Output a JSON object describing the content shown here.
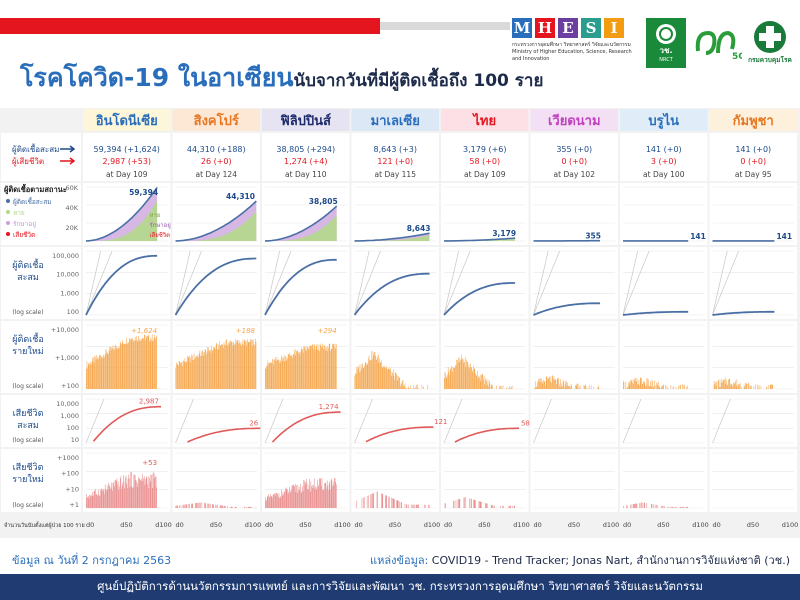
{
  "title": {
    "main": "โรคโควิด-19 ในอาเซียน",
    "sub": "นับจากวันที่มีผู้ติดเชื้อถึง 100 ราย"
  },
  "logos": {
    "mhesi_letters": [
      "M",
      "H",
      "E",
      "S",
      "I"
    ],
    "mhesi_colors": [
      "#2a6ebb",
      "#e4151f",
      "#6b3fa0",
      "#2a9d8f",
      "#f39c12"
    ],
    "mhesi_line1": "กระทรวงการอุดมศึกษา วิทยาศาสตร์ วิจัยและนวัตกรรม",
    "mhesi_line2": "Ministry of Higher Education, Science, Research and Innovation",
    "nrct_label": "วช.",
    "nrct_sub": "NRCT",
    "ssg_label": "5G",
    "moph_label": "กรมควบคุมโรค"
  },
  "legend": {
    "cum_cases": "ผู้ติดเชื้อสะสม",
    "cum_deaths": "ผู้เสียชีวิต",
    "status_title": "ผู้ติดเชื้อตามสถานะ",
    "status_items": [
      "ผู้ติดเชื้อสะสม",
      "หาย",
      "รักษาอยู่",
      "เสียชีวิต"
    ],
    "status_colors": [
      "#4a6fa5",
      "#b5d98a",
      "#c9a0dc",
      "#e4151f"
    ]
  },
  "rows": {
    "r2_label": [
      "ผู้ติดเชื้อ",
      "สะสม"
    ],
    "r3_label": [
      "ผู้ติดเชื้อ",
      "รายใหม่"
    ],
    "r4_label": [
      "เสียชีวิต",
      "สะสม"
    ],
    "r5_label": [
      "เสียชีวิต",
      "รายใหม่"
    ],
    "log_scale": "(log scale)",
    "r1_ticks": [
      "60K",
      "40K",
      "20K"
    ],
    "r2_ticks": [
      "100,000",
      "10,000",
      "1,000",
      "100"
    ],
    "r3_ticks": [
      "+10,000",
      "+1,000",
      "+100"
    ],
    "r4_ticks": [
      "10,000",
      "1,000",
      "100",
      "10"
    ],
    "r5_ticks": [
      "+1000",
      "+100",
      "+10",
      "+1"
    ],
    "days_label": "จำนวนวันนับตั้งแต่ผู้ป่วย 100 ราย",
    "x_ticks": [
      "d0",
      "d50",
      "d100"
    ],
    "inset_labels": {
      "recovered": "หาย",
      "active": "รักษาอยู่",
      "dead": "เสียชีวิต"
    }
  },
  "countries": [
    {
      "name": "อินโดนีเซีย",
      "color": "#2a6ebb",
      "cases": "59,394 (+1,624)",
      "deaths": "2,987 (+53)",
      "day": "at Day 109",
      "total": "59,394",
      "new_label": "+1,624",
      "death_label": "2,987",
      "new_death_label": "+53"
    },
    {
      "name": "สิงคโปร์",
      "color": "#e87722",
      "cases": "44,310 (+188)",
      "deaths": "26 (+0)",
      "day": "at Day 124",
      "total": "44,310",
      "new_label": "+188",
      "death_label": "26",
      "new_death_label": ""
    },
    {
      "name": "ฟิลิปปินส์",
      "color": "#1d2a6b",
      "cases": "38,805 (+294)",
      "deaths": "1,274 (+4)",
      "day": "at Day 110",
      "total": "38,805",
      "new_label": "+294",
      "death_label": "1,274",
      "new_death_label": ""
    },
    {
      "name": "มาเลเซีย",
      "color": "#2a6ebb",
      "cases": "8,643 (+3)",
      "deaths": "121 (+0)",
      "day": "at Day 115",
      "total": "8,643",
      "new_label": "",
      "death_label": "121",
      "new_death_label": ""
    },
    {
      "name": "ไทย",
      "color": "#e4151f",
      "cases": "3,179 (+6)",
      "deaths": "58 (+0)",
      "day": "at Day 109",
      "total": "3,179",
      "new_label": "",
      "death_label": "58",
      "new_death_label": ""
    },
    {
      "name": "เวียดนาม",
      "color": "#c040c0",
      "cases": "355 (+0)",
      "deaths": "0 (+0)",
      "day": "at Day 102",
      "total": "355",
      "new_label": "",
      "death_label": "",
      "new_death_label": ""
    },
    {
      "name": "บรูไน",
      "color": "#2a6ebb",
      "cases": "141 (+0)",
      "deaths": "3 (+0)",
      "day": "at Day 100",
      "total": "141",
      "new_label": "",
      "death_label": "",
      "new_death_label": ""
    },
    {
      "name": "กัมพูชา",
      "color": "#e87722",
      "cases": "141 (+0)",
      "deaths": "0 (+0)",
      "day": "at Day 95",
      "total": "141",
      "new_label": "",
      "death_label": "",
      "new_death_label": ""
    }
  ],
  "footer": {
    "date": "ข้อมูล ณ วันที่ 2 กรกฎาคม 2563",
    "source_prefix": "แหล่งข้อมูล:",
    "source": "COVID19 - Trend Tracker; Jonas Nart, สำนักงานการวิจัยแห่งชาติ (วช.)",
    "bottom": "ศูนย์ปฏิบัติการด้านนวัตกรรมการแพทย์ และการวิจัยและพัฒนา วช.  กระทรวงการอุดมศึกษา วิทยาศาสตร์ วิจัยและนวัตกรรม"
  },
  "colors": {
    "line": "#4a6fa5",
    "case_bar": "#f5a54a",
    "death": "#e05a5a",
    "death_bar": "#e88a8a",
    "grid": "#cfcfcf"
  },
  "chart_data": {
    "type": "line",
    "x_unit": "days since 100th case",
    "x_range": [
      0,
      125
    ],
    "log_scale_rows": [
      "cumulative cases",
      "new cases",
      "cumulative deaths",
      "new deaths"
    ],
    "series": [
      {
        "name": "อินโดนีเซีย",
        "days": 109,
        "cum_cases": 59394,
        "new_cases": 1624,
        "cum_deaths": 2987,
        "new_deaths": 53
      },
      {
        "name": "สิงคโปร์",
        "days": 124,
        "cum_cases": 44310,
        "new_cases": 188,
        "cum_deaths": 26,
        "new_deaths": 0
      },
      {
        "name": "ฟิลิปปินส์",
        "days": 110,
        "cum_cases": 38805,
        "new_cases": 294,
        "cum_deaths": 1274,
        "new_deaths": 4
      },
      {
        "name": "มาเลเซีย",
        "days": 115,
        "cum_cases": 8643,
        "new_cases": 3,
        "cum_deaths": 121,
        "new_deaths": 0
      },
      {
        "name": "ไทย",
        "days": 109,
        "cum_cases": 3179,
        "new_cases": 6,
        "cum_deaths": 58,
        "new_deaths": 0
      },
      {
        "name": "เวียดนาม",
        "days": 102,
        "cum_cases": 355,
        "new_cases": 0,
        "cum_deaths": 0,
        "new_deaths": 0
      },
      {
        "name": "บรูไน",
        "days": 100,
        "cum_cases": 141,
        "new_cases": 0,
        "cum_deaths": 3,
        "new_deaths": 0
      },
      {
        "name": "กัมพูชา",
        "days": 95,
        "cum_cases": 141,
        "new_cases": 0,
        "cum_deaths": 0,
        "new_deaths": 0
      }
    ]
  }
}
